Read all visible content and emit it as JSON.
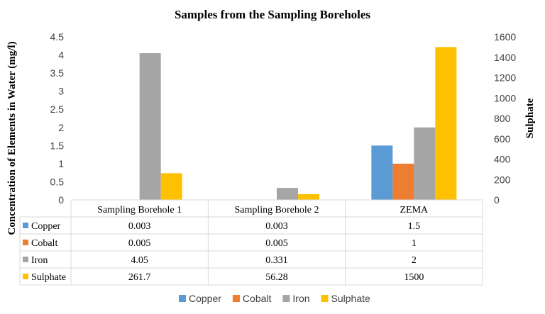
{
  "chart_data": {
    "type": "bar",
    "title": "Samples from the Sampling Boreholes",
    "ylabel": "Concentration of Elements in Water (mg/l)",
    "y2label": "Sulphate",
    "categories": [
      "Sampling Borehole 1",
      "Sampling Borehole 2",
      "ZEMA"
    ],
    "ylim": [
      0,
      4.5
    ],
    "y2lim": [
      0,
      1600
    ],
    "yticks": [
      "0",
      "0.5",
      "1",
      "1.5",
      "2",
      "2.5",
      "3",
      "3.5",
      "4",
      "4.5"
    ],
    "y2ticks": [
      "0",
      "200",
      "400",
      "600",
      "800",
      "1000",
      "1200",
      "1400",
      "1600"
    ],
    "series": [
      {
        "name": "Copper",
        "color": "#5b9bd5",
        "axis": "left",
        "values": [
          0.003,
          0.003,
          1.5
        ],
        "labels": [
          "0.003",
          "0.003",
          "1.5"
        ]
      },
      {
        "name": "Cobalt",
        "color": "#ed7d31",
        "axis": "left",
        "values": [
          0.005,
          0.005,
          1
        ],
        "labels": [
          "0.005",
          "0.005",
          "1"
        ]
      },
      {
        "name": "Iron",
        "color": "#a5a5a5",
        "axis": "left",
        "values": [
          4.05,
          0.331,
          2
        ],
        "labels": [
          "4.05",
          "0.331",
          "2"
        ]
      },
      {
        "name": "Sulphate",
        "color": "#ffc000",
        "axis": "right",
        "values": [
          261.7,
          56.28,
          1500
        ],
        "labels": [
          "261.7",
          "56.28",
          "1500"
        ]
      }
    ],
    "legend_position": "bottom"
  }
}
